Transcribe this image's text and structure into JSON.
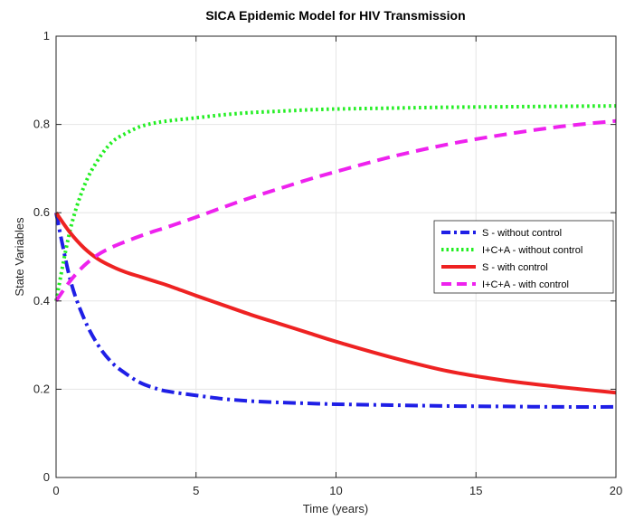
{
  "chart_data": {
    "type": "line",
    "title": "SICA Epidemic Model for HIV Transmission",
    "xlabel": "Time (years)",
    "ylabel": "State Variables",
    "xlim": [
      0,
      20
    ],
    "ylim": [
      0,
      1
    ],
    "xticks": [
      0,
      5,
      10,
      15,
      20
    ],
    "yticks": [
      0,
      0.2,
      0.4,
      0.6,
      0.8,
      1
    ],
    "xtick_labels": [
      "0",
      "5",
      "10",
      "15",
      "20"
    ],
    "ytick_labels": [
      "0",
      "0.2",
      "0.4",
      "0.6",
      "0.8",
      "1"
    ],
    "grid": true,
    "legend_position": "right",
    "x": [
      0,
      0.5,
      1,
      1.5,
      2,
      2.5,
      3,
      3.5,
      4,
      5,
      6,
      7,
      8,
      9,
      10,
      12,
      14,
      16,
      18,
      20
    ],
    "series": [
      {
        "name": "S - without control",
        "color": "#1f1fe6",
        "style": "dashdot",
        "values": [
          0.6,
          0.45,
          0.36,
          0.3,
          0.26,
          0.235,
          0.215,
          0.203,
          0.195,
          0.186,
          0.178,
          0.173,
          0.17,
          0.168,
          0.166,
          0.164,
          0.162,
          0.161,
          0.16,
          0.16
        ]
      },
      {
        "name": "I+C+A - without control",
        "color": "#22ee22",
        "style": "dotted",
        "values": [
          0.4,
          0.56,
          0.66,
          0.72,
          0.76,
          0.78,
          0.795,
          0.803,
          0.808,
          0.815,
          0.822,
          0.827,
          0.83,
          0.833,
          0.835,
          0.837,
          0.839,
          0.84,
          0.841,
          0.842
        ]
      },
      {
        "name": "S - with control",
        "color": "#ee2222",
        "style": "solid",
        "values": [
          0.6,
          0.555,
          0.52,
          0.495,
          0.478,
          0.465,
          0.455,
          0.445,
          0.435,
          0.412,
          0.39,
          0.368,
          0.348,
          0.328,
          0.308,
          0.272,
          0.241,
          0.22,
          0.205,
          0.192
        ]
      },
      {
        "name": "I+C+A - with control",
        "color": "#ee22ee",
        "style": "dashed",
        "values": [
          0.4,
          0.445,
          0.48,
          0.505,
          0.522,
          0.535,
          0.547,
          0.558,
          0.568,
          0.59,
          0.613,
          0.635,
          0.655,
          0.675,
          0.693,
          0.727,
          0.755,
          0.777,
          0.795,
          0.808
        ]
      }
    ]
  }
}
